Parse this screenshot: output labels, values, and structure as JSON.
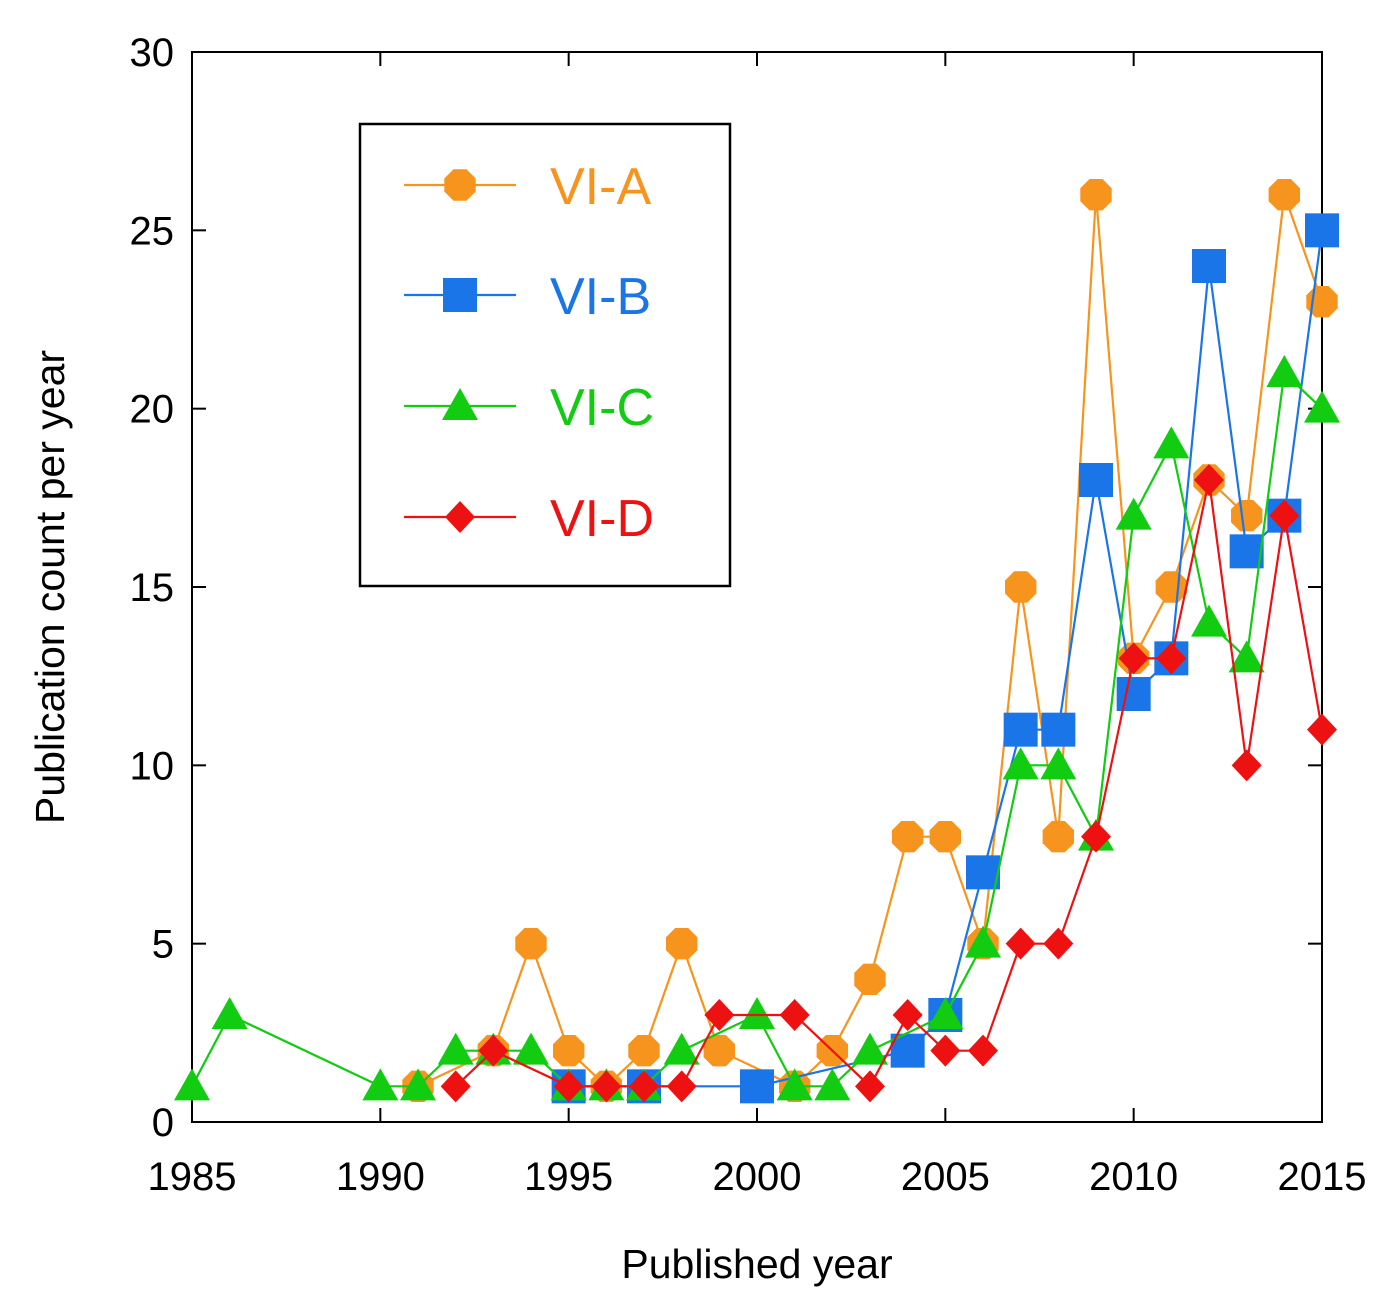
{
  "chart_data": {
    "type": "line",
    "title": "",
    "xlabel": "Published year",
    "ylabel": "Publication count per year",
    "xlim": [
      1985,
      2015
    ],
    "ylim": [
      0,
      30
    ],
    "xticks": [
      1985,
      1990,
      1995,
      2000,
      2005,
      2010,
      2015
    ],
    "yticks": [
      0,
      5,
      10,
      15,
      20,
      25,
      30
    ],
    "grid": false,
    "legend_position": "top-left",
    "series": [
      {
        "name": "VI-A",
        "color": "#f7941d",
        "marker": "octagon",
        "points": [
          [
            1991,
            1
          ],
          [
            1993,
            2
          ],
          [
            1994,
            5
          ],
          [
            1995,
            2
          ],
          [
            1996,
            1
          ],
          [
            1997,
            2
          ],
          [
            1998,
            5
          ],
          [
            1999,
            2
          ],
          [
            2001,
            1
          ],
          [
            2002,
            2
          ],
          [
            2003,
            4
          ],
          [
            2004,
            8
          ],
          [
            2005,
            8
          ],
          [
            2006,
            5
          ],
          [
            2007,
            15
          ],
          [
            2008,
            8
          ],
          [
            2009,
            26
          ],
          [
            2010,
            13
          ],
          [
            2011,
            15
          ],
          [
            2012,
            18
          ],
          [
            2013,
            17
          ],
          [
            2014,
            26
          ],
          [
            2015,
            23
          ]
        ]
      },
      {
        "name": "VI-B",
        "color": "#1a75e8",
        "marker": "square",
        "points": [
          [
            1995,
            1
          ],
          [
            1997,
            1
          ],
          [
            2000,
            1
          ],
          [
            2004,
            2
          ],
          [
            2005,
            3
          ],
          [
            2006,
            7
          ],
          [
            2007,
            11
          ],
          [
            2008,
            11
          ],
          [
            2009,
            18
          ],
          [
            2010,
            12
          ],
          [
            2011,
            13
          ],
          [
            2012,
            24
          ],
          [
            2013,
            16
          ],
          [
            2014,
            17
          ],
          [
            2015,
            25
          ]
        ]
      },
      {
        "name": "VI-C",
        "color": "#11cc11",
        "marker": "triangle",
        "points": [
          [
            1985,
            1
          ],
          [
            1986,
            3
          ],
          [
            1990,
            1
          ],
          [
            1991,
            1
          ],
          [
            1992,
            2
          ],
          [
            1993,
            2
          ],
          [
            1994,
            2
          ],
          [
            1995,
            1
          ],
          [
            1996,
            1
          ],
          [
            1997,
            1
          ],
          [
            1998,
            2
          ],
          [
            2000,
            3
          ],
          [
            2001,
            1
          ],
          [
            2002,
            1
          ],
          [
            2003,
            2
          ],
          [
            2005,
            3
          ],
          [
            2006,
            5
          ],
          [
            2007,
            10
          ],
          [
            2008,
            10
          ],
          [
            2009,
            8
          ],
          [
            2010,
            17
          ],
          [
            2011,
            19
          ],
          [
            2012,
            14
          ],
          [
            2013,
            13
          ],
          [
            2014,
            21
          ],
          [
            2015,
            20
          ]
        ]
      },
      {
        "name": "VI-D",
        "color": "#ee1111",
        "marker": "diamond",
        "points": [
          [
            1992,
            1
          ],
          [
            1993,
            2
          ],
          [
            1995,
            1
          ],
          [
            1996,
            1
          ],
          [
            1997,
            1
          ],
          [
            1998,
            1
          ],
          [
            1999,
            3
          ],
          [
            2001,
            3
          ],
          [
            2003,
            1
          ],
          [
            2004,
            3
          ],
          [
            2005,
            2
          ],
          [
            2006,
            2
          ],
          [
            2007,
            5
          ],
          [
            2008,
            5
          ],
          [
            2009,
            8
          ],
          [
            2010,
            13
          ],
          [
            2011,
            13
          ],
          [
            2012,
            18
          ],
          [
            2013,
            10
          ],
          [
            2014,
            17
          ],
          [
            2015,
            11
          ]
        ]
      }
    ]
  }
}
